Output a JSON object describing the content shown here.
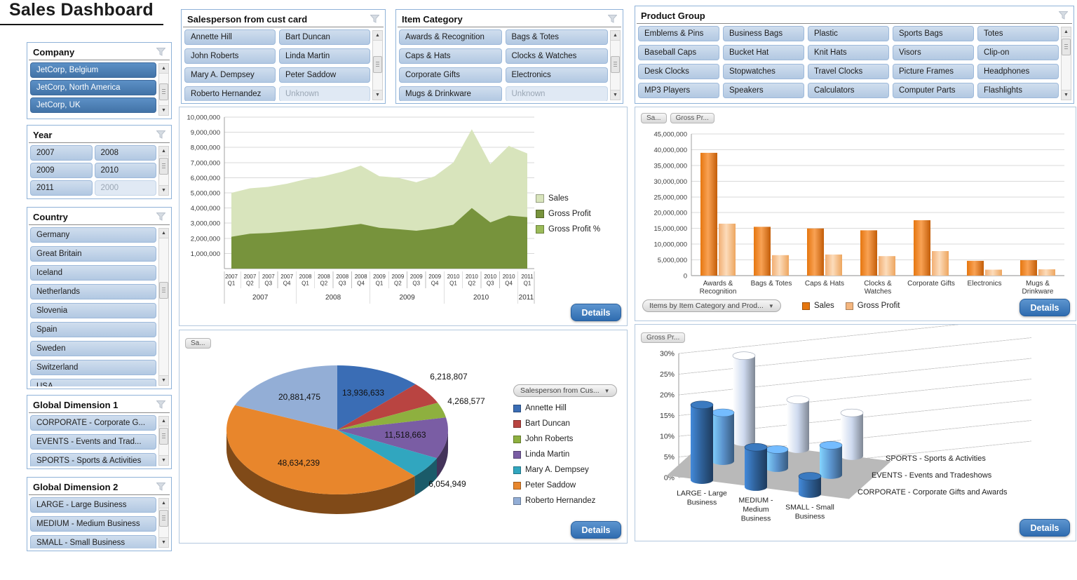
{
  "ui": {
    "title": "Sales Dashboard",
    "details_label": "Details",
    "icons": {
      "filter": "clear-filter-funnel",
      "scroll_up": "▲",
      "scroll_down": "▼",
      "dropdown": "▼"
    }
  },
  "slicers": {
    "company": {
      "title": "Company",
      "items": [
        {
          "label": "JetCorp, Belgium",
          "state": "selected"
        },
        {
          "label": "JetCorp, North America",
          "state": "selected"
        },
        {
          "label": "JetCorp, UK",
          "state": "selected"
        }
      ]
    },
    "year": {
      "title": "Year",
      "items": [
        {
          "label": "2007",
          "state": "normal"
        },
        {
          "label": "2008",
          "state": "normal"
        },
        {
          "label": "2009",
          "state": "normal"
        },
        {
          "label": "2010",
          "state": "normal"
        },
        {
          "label": "2011",
          "state": "normal"
        },
        {
          "label": "2000",
          "state": "disabled"
        }
      ]
    },
    "country": {
      "title": "Country",
      "items": [
        {
          "label": "Germany",
          "state": "normal"
        },
        {
          "label": "Great Britain",
          "state": "normal"
        },
        {
          "label": "Iceland",
          "state": "normal"
        },
        {
          "label": "Netherlands",
          "state": "normal"
        },
        {
          "label": "Slovenia",
          "state": "normal"
        },
        {
          "label": "Spain",
          "state": "normal"
        },
        {
          "label": "Sweden",
          "state": "normal"
        },
        {
          "label": "Switzerland",
          "state": "normal"
        },
        {
          "label": "USA",
          "state": "normal"
        }
      ]
    },
    "global_dimension_1": {
      "title": "Global Dimension 1",
      "items": [
        {
          "label": "CORPORATE - Corporate G...",
          "state": "normal"
        },
        {
          "label": "EVENTS - Events and Trad...",
          "state": "normal"
        },
        {
          "label": "SPORTS - Sports & Activities",
          "state": "normal"
        }
      ]
    },
    "global_dimension_2": {
      "title": "Global Dimension 2",
      "items": [
        {
          "label": "LARGE - Large Business",
          "state": "normal"
        },
        {
          "label": "MEDIUM - Medium Business",
          "state": "normal"
        },
        {
          "label": "SMALL - Small Business",
          "state": "normal"
        }
      ]
    },
    "salesperson": {
      "title": "Salesperson from cust card",
      "items": [
        {
          "label": "Annette Hill",
          "state": "normal"
        },
        {
          "label": "Bart Duncan",
          "state": "normal"
        },
        {
          "label": "John Roberts",
          "state": "normal"
        },
        {
          "label": "Linda Martin",
          "state": "normal"
        },
        {
          "label": "Mary A. Dempsey",
          "state": "normal"
        },
        {
          "label": "Peter Saddow",
          "state": "normal"
        },
        {
          "label": "Roberto Hernandez",
          "state": "normal"
        },
        {
          "label": "Unknown",
          "state": "disabled"
        }
      ]
    },
    "item_category": {
      "title": "Item Category",
      "items": [
        {
          "label": "Awards & Recognition",
          "state": "normal"
        },
        {
          "label": "Bags & Totes",
          "state": "normal"
        },
        {
          "label": "Caps & Hats",
          "state": "normal"
        },
        {
          "label": "Clocks & Watches",
          "state": "normal"
        },
        {
          "label": "Corporate Gifts",
          "state": "normal"
        },
        {
          "label": "Electronics",
          "state": "normal"
        },
        {
          "label": "Mugs & Drinkware",
          "state": "normal"
        },
        {
          "label": "Unknown",
          "state": "disabled"
        }
      ]
    },
    "product_group": {
      "title": "Product Group",
      "items": [
        {
          "label": "Emblems & Pins",
          "state": "normal"
        },
        {
          "label": "Business Bags",
          "state": "normal"
        },
        {
          "label": "Plastic",
          "state": "normal"
        },
        {
          "label": "Sports Bags",
          "state": "normal"
        },
        {
          "label": "Totes",
          "state": "normal"
        },
        {
          "label": "Baseball Caps",
          "state": "normal"
        },
        {
          "label": "Bucket Hat",
          "state": "normal"
        },
        {
          "label": "Knit Hats",
          "state": "normal"
        },
        {
          "label": "Visors",
          "state": "normal"
        },
        {
          "label": "Clip-on",
          "state": "normal"
        },
        {
          "label": "Desk Clocks",
          "state": "normal"
        },
        {
          "label": "Stopwatches",
          "state": "normal"
        },
        {
          "label": "Travel Clocks",
          "state": "normal"
        },
        {
          "label": "Picture Frames",
          "state": "normal"
        },
        {
          "label": "Headphones",
          "state": "normal"
        },
        {
          "label": "MP3 Players",
          "state": "normal"
        },
        {
          "label": "Speakers",
          "state": "normal"
        },
        {
          "label": "Calculators",
          "state": "normal"
        },
        {
          "label": "Computer Parts",
          "state": "normal"
        },
        {
          "label": "Flashlights",
          "state": "normal"
        }
      ]
    }
  },
  "panels": {
    "category_bar": {
      "chips": [
        "Sa...",
        "Gross Pr..."
      ],
      "dropdown": "Items by Item Category and Prod..."
    },
    "pie": {
      "chip": "Sa...",
      "dropdown": "Salesperson from Cus..."
    },
    "bar3d": {
      "chip": "Gross Pr..."
    }
  },
  "chart_data": [
    {
      "name": "sales_and_gross_profit_by_quarter",
      "type": "area",
      "categories": [
        {
          "y": "2007",
          "q": "Q1"
        },
        {
          "y": "2007",
          "q": "Q2"
        },
        {
          "y": "2007",
          "q": "Q3"
        },
        {
          "y": "2007",
          "q": "Q4"
        },
        {
          "y": "2008",
          "q": "Q1"
        },
        {
          "y": "2008",
          "q": "Q2"
        },
        {
          "y": "2008",
          "q": "Q3"
        },
        {
          "y": "2008",
          "q": "Q4"
        },
        {
          "y": "2009",
          "q": "Q1"
        },
        {
          "y": "2009",
          "q": "Q2"
        },
        {
          "y": "2009",
          "q": "Q3"
        },
        {
          "y": "2009",
          "q": "Q4"
        },
        {
          "y": "2010",
          "q": "Q1"
        },
        {
          "y": "2010",
          "q": "Q2"
        },
        {
          "y": "2010",
          "q": "Q3"
        },
        {
          "y": "2010",
          "q": "Q4"
        },
        {
          "y": "2011",
          "q": "Q1"
        }
      ],
      "year_groups": [
        {
          "label": "2007",
          "span": 4
        },
        {
          "label": "2008",
          "span": 4
        },
        {
          "label": "2009",
          "span": 4
        },
        {
          "label": "2010",
          "span": 4
        },
        {
          "label": "2011",
          "span": 1
        }
      ],
      "series": [
        {
          "name": "Sales",
          "color": "#d8e4bc",
          "values": [
            5000000,
            5300000,
            5400000,
            5600000,
            5900000,
            6100000,
            6400000,
            6800000,
            6100000,
            6000000,
            5700000,
            6100000,
            7000000,
            9200000,
            6900000,
            8100000,
            7600000
          ]
        },
        {
          "name": "Gross Profit",
          "color": "#77933c",
          "values": [
            2100000,
            2300000,
            2350000,
            2450000,
            2550000,
            2650000,
            2800000,
            2950000,
            2700000,
            2600000,
            2500000,
            2650000,
            2900000,
            4000000,
            3050000,
            3500000,
            3400000
          ]
        },
        {
          "name": "Gross Profit %",
          "color": "#9bbb59",
          "values": []
        }
      ],
      "ylim": [
        0,
        10000000
      ],
      "ytick": 1000000,
      "grid": true,
      "legend_position": "right"
    },
    {
      "name": "sales_and_gross_profit_by_item_category",
      "type": "bar",
      "categories": [
        [
          "Awards &",
          "Recognition"
        ],
        [
          "Bags & Totes"
        ],
        [
          "Caps & Hats"
        ],
        [
          "Clocks &",
          "Watches"
        ],
        [
          "Corporate Gifts"
        ],
        [
          "Electronics"
        ],
        [
          "Mugs &",
          "Drinkware"
        ]
      ],
      "series": [
        {
          "name": "Sales",
          "swatch": "#e5760f",
          "gradient": [
            "#e5760f",
            "#f9a254",
            "#c35d08"
          ],
          "values": [
            39000000,
            15500000,
            15000000,
            14400000,
            17600000,
            4700000,
            4900000
          ]
        },
        {
          "name": "Gross Profit",
          "swatch": "#f4b67f",
          "gradient": [
            "#f2ae72",
            "#fcdcbb",
            "#eda55e"
          ],
          "values": [
            16500000,
            6500000,
            6700000,
            6200000,
            7800000,
            1900000,
            2000000
          ]
        }
      ],
      "ylim": [
        0,
        45000000
      ],
      "ytick": 5000000,
      "grid": true,
      "legend_position": "bottom"
    },
    {
      "name": "sales_by_salesperson",
      "type": "pie",
      "effect": "3d",
      "legend_position": "right",
      "slices": [
        {
          "label": "Annette Hill",
          "value": 13936633,
          "color": "#3a6db5"
        },
        {
          "label": "Bart Duncan",
          "value": 6218807,
          "color": "#b94441"
        },
        {
          "label": "John Roberts",
          "value": 4268577,
          "color": "#8eb03f"
        },
        {
          "label": "Linda Martin",
          "value": 11518663,
          "color": "#7a5da4"
        },
        {
          "label": "Mary A. Dempsey",
          "value": 6054949,
          "color": "#31a6bf"
        },
        {
          "label": "Peter Saddow",
          "value": 48634239,
          "color": "#e8862c"
        },
        {
          "label": "Roberto Hernandez",
          "value": 20881475,
          "color": "#93aed6"
        }
      ]
    },
    {
      "name": "gross_profit_pct_by_business_size_and_division",
      "type": "bar3d",
      "categories": [
        [
          "LARGE - Large",
          "Business"
        ],
        [
          "MEDIUM -",
          "Medium",
          "Business"
        ],
        [
          "SMALL - Small",
          "Business"
        ]
      ],
      "series": [
        {
          "name": "CORPORATE - Corporate Gifts and Awards",
          "depth": "front",
          "color": "#2e5f96",
          "values": [
            17,
            9,
            4
          ]
        },
        {
          "name": "EVENTS - Events and Tradeshows",
          "depth": "middle",
          "color": "#5b93cd",
          "values": [
            13,
            5,
            8
          ]
        },
        {
          "name": "SPORTS - Sports & Activities",
          "depth": "back",
          "color": "#cdd9ee",
          "values": [
            28,
            16,
            14
          ]
        }
      ],
      "ylim": [
        0,
        30
      ],
      "ytick": 5,
      "unit": "%"
    }
  ]
}
